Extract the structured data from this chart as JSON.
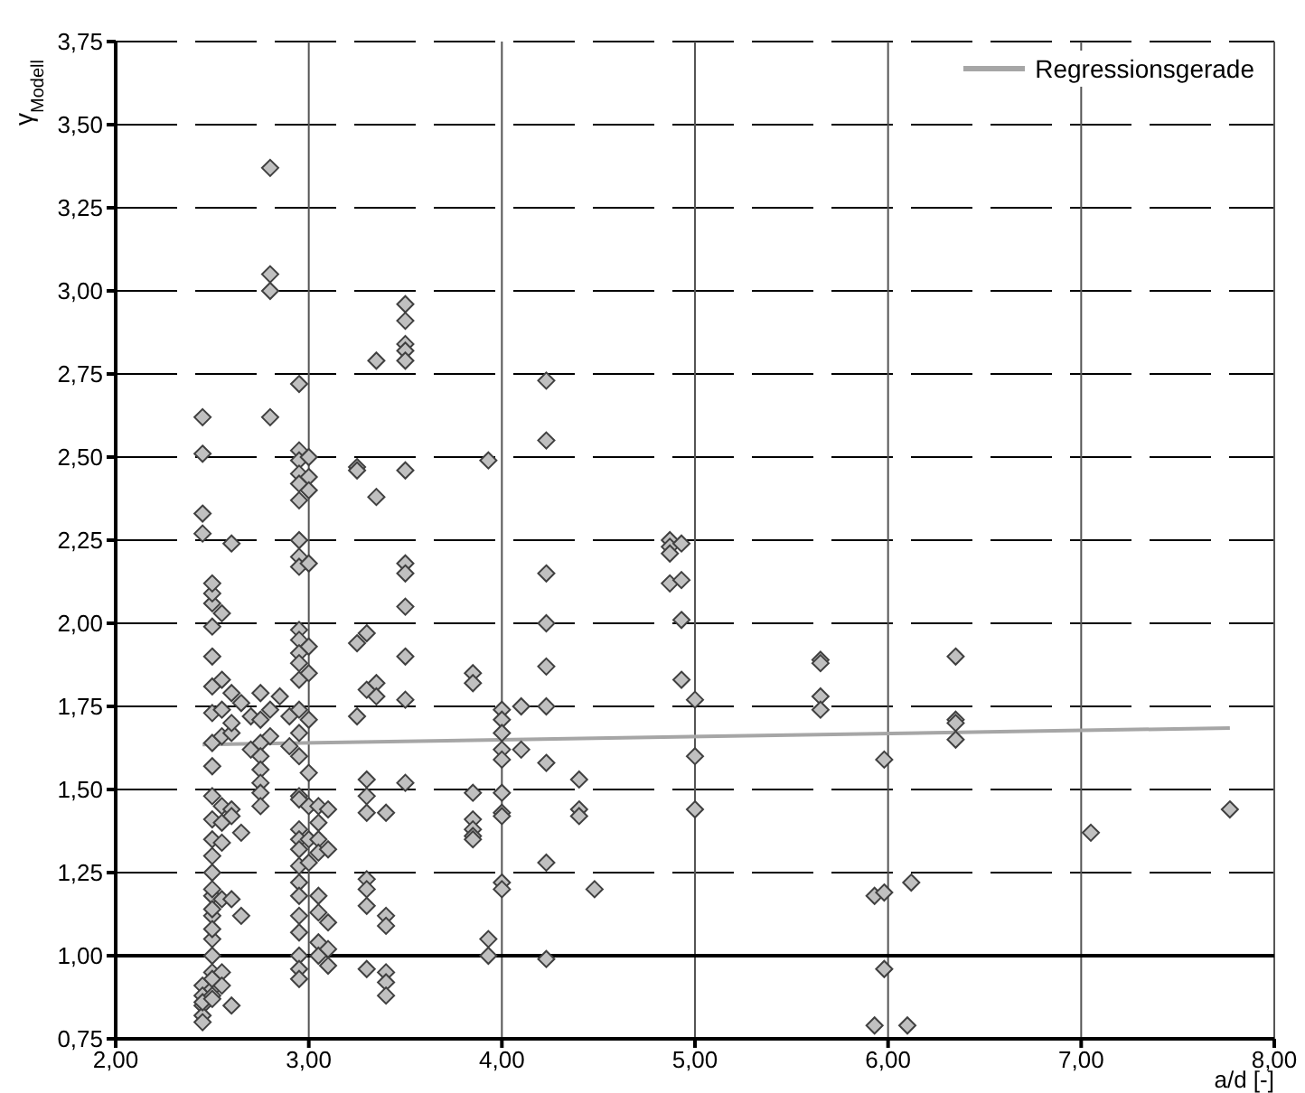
{
  "chart_data": {
    "type": "scatter",
    "xlabel": "a/d [-]",
    "ylabel": "γ$_{Modell}$",
    "xlim": [
      2,
      8
    ],
    "ylim": [
      0.75,
      3.75
    ],
    "xticks": [
      {
        "value": 2,
        "label": "2,00"
      },
      {
        "value": 3,
        "label": "3,00"
      },
      {
        "value": 4,
        "label": "4,00"
      },
      {
        "value": 5,
        "label": "5,00"
      },
      {
        "value": 6,
        "label": "6,00"
      },
      {
        "value": 7,
        "label": "7,00"
      },
      {
        "value": 8,
        "label": "8,00"
      }
    ],
    "yticks": [
      {
        "value": 0.75,
        "label": "0,75"
      },
      {
        "value": 1,
        "label": "1,00"
      },
      {
        "value": 1.25,
        "label": "1,25"
      },
      {
        "value": 1.5,
        "label": "1,50"
      },
      {
        "value": 1.75,
        "label": "1,75"
      },
      {
        "value": 2,
        "label": "2,00"
      },
      {
        "value": 2.25,
        "label": "2,25"
      },
      {
        "value": 2.5,
        "label": "2,50"
      },
      {
        "value": 2.75,
        "label": "2,75"
      },
      {
        "value": 3,
        "label": "3,00"
      },
      {
        "value": 3.25,
        "label": "3,25"
      },
      {
        "value": 3.5,
        "label": "3,50"
      },
      {
        "value": 3.75,
        "label": "3,75"
      }
    ],
    "grid": true,
    "legend": "top right",
    "ref_lines": [
      {
        "axis": "y",
        "value": 1,
        "color": "#000000"
      }
    ],
    "series": [
      {
        "marker": "diamond",
        "color": "#c0c0c0",
        "x": [
          2.45,
          2.45,
          2.45,
          2.45,
          2.45,
          2.45,
          2.45,
          2.45,
          2.45,
          2.45,
          2.5,
          2.5,
          2.5,
          2.5,
          2.5,
          2.5,
          2.5,
          2.5,
          2.5,
          2.5,
          2.5,
          2.5,
          2.5,
          2.5,
          2.5,
          2.5,
          2.5,
          2.5,
          2.5,
          2.5,
          2.5,
          2.5,
          2.5,
          2.5,
          2.5,
          2.5,
          2.55,
          2.55,
          2.55,
          2.55,
          2.55,
          2.55,
          2.55,
          2.55,
          2.55,
          2.55,
          2.6,
          2.6,
          2.6,
          2.6,
          2.6,
          2.6,
          2.6,
          2.6,
          2.65,
          2.65,
          2.65,
          2.7,
          2.7,
          2.75,
          2.75,
          2.75,
          2.75,
          2.75,
          2.75,
          2.75,
          2.75,
          2.8,
          2.8,
          2.8,
          2.8,
          2.8,
          2.8,
          2.85,
          2.9,
          2.9,
          2.95,
          2.95,
          2.95,
          2.95,
          2.95,
          2.95,
          2.95,
          2.95,
          2.95,
          2.95,
          2.95,
          2.95,
          2.95,
          2.95,
          2.95,
          2.95,
          2.95,
          2.95,
          2.95,
          2.95,
          2.95,
          2.95,
          2.95,
          2.95,
          2.95,
          2.95,
          2.95,
          2.95,
          2.95,
          2.95,
          3.0,
          3.0,
          3.0,
          3.0,
          3.0,
          3.0,
          3.0,
          3.0,
          3.0,
          3.0,
          3.0,
          3.05,
          3.05,
          3.05,
          3.05,
          3.05,
          3.05,
          3.05,
          3.05,
          3.1,
          3.1,
          3.1,
          3.1,
          3.1,
          3.25,
          3.25,
          3.25,
          3.25,
          3.3,
          3.3,
          3.3,
          3.3,
          3.3,
          3.3,
          3.3,
          3.3,
          3.3,
          3.35,
          3.35,
          3.35,
          3.35,
          3.4,
          3.4,
          3.4,
          3.4,
          3.4,
          3.4,
          3.5,
          3.5,
          3.5,
          3.5,
          3.5,
          3.5,
          3.5,
          3.5,
          3.5,
          3.5,
          3.5,
          3.5,
          3.85,
          3.85,
          3.85,
          3.85,
          3.85,
          3.85,
          3.85,
          3.93,
          3.93,
          3.93,
          4.0,
          4.0,
          4.0,
          4.0,
          4.0,
          4.0,
          4.0,
          4.0,
          4.0,
          4.0,
          4.1,
          4.1,
          4.23,
          4.23,
          4.23,
          4.23,
          4.23,
          4.23,
          4.23,
          4.23,
          4.23,
          4.4,
          4.4,
          4.4,
          4.48,
          4.87,
          4.87,
          4.87,
          4.87,
          4.93,
          4.93,
          4.93,
          4.93,
          5.0,
          5.0,
          5.0,
          5.65,
          5.65,
          5.65,
          5.65,
          5.93,
          5.93,
          5.98,
          5.98,
          5.98,
          6.1,
          6.12,
          6.35,
          6.35,
          6.35,
          6.35,
          7.05,
          7.77
        ],
        "values": [
          2.62,
          2.51,
          2.33,
          2.27,
          0.91,
          0.85,
          0.82,
          0.8,
          0.88,
          0.86,
          1.18,
          1.12,
          1.05,
          1.0,
          0.95,
          0.9,
          1.2,
          1.14,
          1.25,
          1.3,
          1.35,
          1.41,
          1.48,
          1.57,
          1.64,
          1.73,
          1.81,
          1.9,
          1.99,
          2.06,
          2.09,
          2.12,
          0.93,
          0.88,
          0.87,
          1.08,
          1.83,
          1.74,
          2.03,
          1.66,
          1.45,
          1.4,
          1.34,
          1.17,
          0.95,
          0.91,
          2.24,
          1.67,
          1.7,
          1.79,
          1.44,
          1.42,
          1.17,
          0.85,
          1.76,
          1.37,
          1.12,
          1.62,
          1.72,
          1.79,
          1.71,
          1.64,
          1.6,
          1.56,
          1.52,
          1.49,
          1.45,
          3.37,
          3.05,
          3.0,
          2.62,
          1.74,
          1.66,
          1.78,
          1.72,
          1.63,
          2.72,
          2.52,
          2.49,
          2.45,
          2.42,
          2.37,
          2.25,
          2.2,
          2.17,
          1.98,
          1.95,
          1.91,
          1.88,
          1.83,
          1.74,
          1.67,
          1.6,
          1.48,
          1.47,
          1.38,
          1.35,
          1.32,
          1.27,
          1.22,
          1.18,
          1.12,
          1.07,
          1.0,
          0.96,
          0.93,
          2.5,
          2.44,
          2.4,
          2.18,
          1.93,
          1.85,
          1.71,
          1.55,
          1.45,
          1.35,
          1.28,
          1.45,
          1.4,
          1.35,
          1.31,
          1.18,
          1.13,
          1.04,
          1.0,
          1.44,
          1.32,
          1.1,
          0.97,
          1.02,
          2.47,
          2.46,
          1.94,
          1.72,
          1.97,
          1.8,
          1.53,
          1.48,
          1.43,
          1.23,
          1.2,
          1.15,
          0.96,
          2.38,
          2.79,
          1.82,
          1.78,
          1.43,
          1.12,
          1.09,
          0.95,
          0.92,
          0.88,
          2.96,
          2.91,
          2.84,
          2.82,
          2.79,
          2.46,
          2.18,
          2.15,
          2.05,
          1.9,
          1.77,
          1.52,
          1.85,
          1.82,
          1.49,
          1.41,
          1.38,
          1.36,
          1.35,
          2.49,
          1.05,
          1.0,
          1.74,
          1.71,
          1.67,
          1.62,
          1.59,
          1.49,
          1.43,
          1.42,
          1.22,
          1.2,
          1.75,
          1.62,
          2.73,
          2.55,
          2.15,
          2.0,
          1.87,
          1.75,
          1.58,
          1.28,
          0.99,
          1.53,
          1.44,
          1.42,
          1.2,
          2.25,
          2.23,
          2.21,
          2.12,
          2.24,
          2.13,
          2.01,
          1.83,
          1.77,
          1.6,
          1.44,
          1.89,
          1.88,
          1.78,
          1.74,
          1.18,
          0.79,
          1.59,
          1.19,
          0.96,
          0.79,
          1.22,
          1.9,
          1.71,
          1.7,
          1.65,
          1.37,
          1.44
        ]
      },
      {
        "type": "line",
        "marker": "none",
        "name": "Regressionsgerade",
        "color": "#a6a6a6",
        "x": [
          2.45,
          7.77
        ],
        "values": [
          1.635,
          1.685
        ]
      }
    ]
  }
}
